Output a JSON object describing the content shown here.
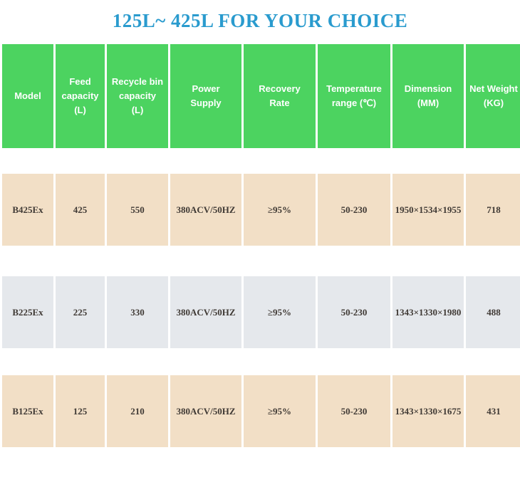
{
  "title": "125L~ 425L FOR YOUR CHOICE",
  "colors": {
    "blue": "#2a9bce",
    "green": "#4cd360",
    "tan": "#f2dfc6",
    "gray": "#e5e8ec",
    "text": "#403a35"
  },
  "table": {
    "columns": [
      {
        "label": "Model"
      },
      {
        "label": "Feed\ncapacity\n(L)"
      },
      {
        "label": "Recycle bin\ncapacity\n(L)"
      },
      {
        "label": "Power\nSupply"
      },
      {
        "label": "Recovery\nRate"
      },
      {
        "label": "Temperature\nrange (℃)"
      },
      {
        "label": "Dimension\n(MM)"
      },
      {
        "label": "Net Weight\n(KG)"
      }
    ],
    "rows": [
      {
        "cells": [
          "B425Ex",
          "425",
          "550",
          "380ACV/50HZ",
          "≥95%",
          "50-230",
          "1950×1534×1955",
          "718"
        ]
      },
      {
        "cells": [
          "B225Ex",
          "225",
          "330",
          "380ACV/50HZ",
          "≥95%",
          "50-230",
          "1343×1330×1980",
          "488"
        ]
      },
      {
        "cells": [
          "B125Ex",
          "125",
          "210",
          "380ACV/50HZ",
          "≥95%",
          "50-230",
          "1343×1330×1675",
          "431"
        ]
      }
    ]
  }
}
